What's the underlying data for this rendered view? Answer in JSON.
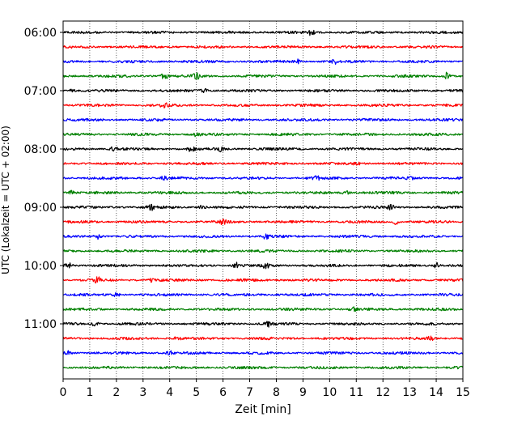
{
  "chart_data": {
    "type": "line",
    "title": "",
    "xlabel": "Zeit  [min]",
    "ylabel": "UTC (Lokalzeit = UTC + 02:00)",
    "xlim": [
      0,
      15
    ],
    "x_ticks": [
      "0",
      "1",
      "2",
      "3",
      "4",
      "5",
      "6",
      "7",
      "8",
      "9",
      "10",
      "11",
      "12",
      "13",
      "14",
      "15"
    ],
    "y_ticks": [
      "06:00",
      "07:00",
      "08:00",
      "09:00",
      "10:00",
      "11:00"
    ],
    "grid": "vertical dotted lines at each minute",
    "trace_interval_minutes": 15,
    "first_trace": "06:00",
    "colors": [
      "#000000",
      "#ff0000",
      "#0000ff",
      "#008000"
    ],
    "traces": [
      {
        "start": "06:00",
        "color": "#000000",
        "bursts": [
          {
            "x": 9.3,
            "a": 3
          }
        ]
      },
      {
        "start": "06:15",
        "color": "#ff0000",
        "bursts": []
      },
      {
        "start": "06:30",
        "color": "#0000ff",
        "bursts": [
          {
            "x": 8.8,
            "a": 2.5
          },
          {
            "x": 10.2,
            "a": 2
          }
        ]
      },
      {
        "start": "06:45",
        "color": "#008000",
        "bursts": [
          {
            "x": 3.8,
            "a": 3.5
          },
          {
            "x": 5.0,
            "a": 3
          },
          {
            "x": 14.4,
            "a": 4
          }
        ]
      },
      {
        "start": "07:00",
        "color": "#000000",
        "bursts": [
          {
            "x": 0.3,
            "a": 2
          },
          {
            "x": 5.3,
            "a": 2
          }
        ]
      },
      {
        "start": "07:15",
        "color": "#ff0000",
        "bursts": [
          {
            "x": 3.8,
            "a": 2.5
          }
        ]
      },
      {
        "start": "07:30",
        "color": "#0000ff",
        "bursts": []
      },
      {
        "start": "07:45",
        "color": "#008000",
        "bursts": [
          {
            "x": 5.0,
            "a": 2
          }
        ]
      },
      {
        "start": "08:00",
        "color": "#000000",
        "bursts": [
          {
            "x": 1.9,
            "a": 3
          },
          {
            "x": 4.8,
            "a": 2.5
          },
          {
            "x": 5.9,
            "a": 2.5
          }
        ]
      },
      {
        "start": "08:15",
        "color": "#ff0000",
        "bursts": [
          {
            "x": 11.0,
            "a": 2
          }
        ]
      },
      {
        "start": "08:30",
        "color": "#0000ff",
        "bursts": [
          {
            "x": 3.8,
            "a": 2.5
          },
          {
            "x": 9.5,
            "a": 2.5
          },
          {
            "x": 13.0,
            "a": 2
          }
        ]
      },
      {
        "start": "08:45",
        "color": "#008000",
        "bursts": [
          {
            "x": 0.3,
            "a": 2
          },
          {
            "x": 10.6,
            "a": 2
          }
        ]
      },
      {
        "start": "09:00",
        "color": "#000000",
        "bursts": [
          {
            "x": 3.3,
            "a": 3
          },
          {
            "x": 5.2,
            "a": 2.5
          },
          {
            "x": 12.3,
            "a": 2.5
          }
        ]
      },
      {
        "start": "09:15",
        "color": "#ff0000",
        "bursts": [
          {
            "x": 6.0,
            "a": 2.5
          },
          {
            "x": 12.5,
            "a": 3
          }
        ]
      },
      {
        "start": "09:30",
        "color": "#0000ff",
        "bursts": [
          {
            "x": 1.3,
            "a": 3
          },
          {
            "x": 7.6,
            "a": 2.5
          }
        ]
      },
      {
        "start": "09:45",
        "color": "#008000",
        "bursts": []
      },
      {
        "start": "10:00",
        "color": "#000000",
        "bursts": [
          {
            "x": 0.2,
            "a": 3
          },
          {
            "x": 6.5,
            "a": 3
          },
          {
            "x": 7.6,
            "a": 3
          },
          {
            "x": 14.0,
            "a": 3
          }
        ]
      },
      {
        "start": "10:15",
        "color": "#ff0000",
        "bursts": [
          {
            "x": 1.3,
            "a": 4
          },
          {
            "x": 3.3,
            "a": 2
          }
        ]
      },
      {
        "start": "10:30",
        "color": "#0000ff",
        "bursts": [
          {
            "x": 2.0,
            "a": 2
          }
        ]
      },
      {
        "start": "10:45",
        "color": "#008000",
        "bursts": [
          {
            "x": 10.9,
            "a": 3
          }
        ]
      },
      {
        "start": "11:00",
        "color": "#000000",
        "bursts": [
          {
            "x": 1.2,
            "a": 2.5
          },
          {
            "x": 7.7,
            "a": 3
          }
        ]
      },
      {
        "start": "11:15",
        "color": "#ff0000",
        "bursts": [
          {
            "x": 4.3,
            "a": 2.5
          },
          {
            "x": 13.8,
            "a": 2.5
          }
        ]
      },
      {
        "start": "11:30",
        "color": "#0000ff",
        "bursts": [
          {
            "x": 0.2,
            "a": 2.5
          },
          {
            "x": 4.0,
            "a": 2
          }
        ]
      },
      {
        "start": "11:45",
        "color": "#008000",
        "bursts": []
      }
    ]
  }
}
